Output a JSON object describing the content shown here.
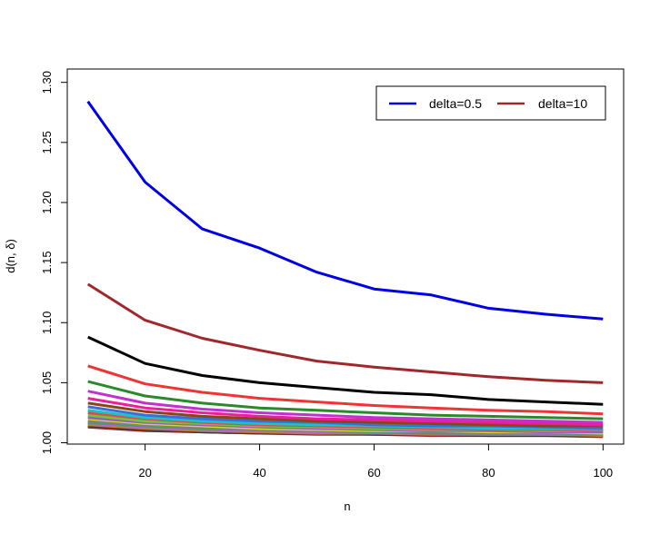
{
  "chart_data": {
    "type": "line",
    "title": "",
    "xlabel": "n",
    "ylabel": "d(n, δ)",
    "x": [
      10,
      20,
      30,
      40,
      50,
      60,
      70,
      80,
      90,
      100
    ],
    "xlim": [
      6.4,
      103.6
    ],
    "ylim": [
      0.9989,
      1.3111
    ],
    "xticks": [
      20,
      40,
      60,
      80,
      100
    ],
    "yticks": [
      1.0,
      1.05,
      1.1,
      1.15,
      1.2,
      1.25,
      1.3
    ],
    "ytick_labels": [
      "1.00",
      "1.05",
      "1.10",
      "1.15",
      "1.20",
      "1.25",
      "1.30"
    ],
    "grid": false,
    "legend_position": "top-right",
    "legend": [
      {
        "label": "delta=0.5",
        "color": "#0000e6"
      },
      {
        "label": "delta=10",
        "color": "#a0282d"
      }
    ],
    "series": [
      {
        "color": "#0000e6",
        "values": [
          1.284,
          1.217,
          1.178,
          1.162,
          1.142,
          1.128,
          1.123,
          1.112,
          1.107,
          1.103
        ]
      },
      {
        "color": "#a0282d",
        "values": [
          1.132,
          1.102,
          1.087,
          1.077,
          1.068,
          1.063,
          1.059,
          1.055,
          1.052,
          1.05
        ]
      },
      {
        "color": "#000000",
        "values": [
          1.088,
          1.066,
          1.056,
          1.05,
          1.046,
          1.042,
          1.04,
          1.036,
          1.034,
          1.032
        ]
      },
      {
        "color": "#ef3434",
        "values": [
          1.064,
          1.049,
          1.042,
          1.037,
          1.034,
          1.031,
          1.029,
          1.027,
          1.026,
          1.024
        ]
      },
      {
        "color": "#2a8a2a",
        "values": [
          1.051,
          1.039,
          1.033,
          1.029,
          1.027,
          1.025,
          1.023,
          1.022,
          1.021,
          1.02
        ]
      },
      {
        "color": "#c42fd0",
        "values": [
          1.043,
          1.033,
          1.028,
          1.025,
          1.023,
          1.021,
          1.02,
          1.019,
          1.018,
          1.017
        ]
      },
      {
        "color": "#e8209a",
        "values": [
          1.037,
          1.029,
          1.025,
          1.022,
          1.02,
          1.019,
          1.018,
          1.017,
          1.016,
          1.015
        ]
      },
      {
        "color": "#8b4513",
        "values": [
          1.033,
          1.026,
          1.022,
          1.02,
          1.018,
          1.017,
          1.016,
          1.015,
          1.014,
          1.014
        ]
      },
      {
        "color": "#3a6fd8",
        "values": [
          1.03,
          1.023,
          1.02,
          1.018,
          1.017,
          1.015,
          1.014,
          1.014,
          1.013,
          1.012
        ]
      },
      {
        "color": "#20c0c8",
        "values": [
          1.027,
          1.021,
          1.018,
          1.016,
          1.015,
          1.014,
          1.013,
          1.012,
          1.012,
          1.011
        ]
      },
      {
        "color": "#e04a4a",
        "values": [
          1.025,
          1.02,
          1.017,
          1.015,
          1.014,
          1.013,
          1.012,
          1.011,
          1.011,
          1.01
        ]
      },
      {
        "color": "#6ac83a",
        "values": [
          1.023,
          1.018,
          1.016,
          1.014,
          1.013,
          1.012,
          1.011,
          1.011,
          1.01,
          1.01
        ]
      },
      {
        "color": "#9a58c8",
        "values": [
          1.021,
          1.017,
          1.015,
          1.013,
          1.012,
          1.011,
          1.01,
          1.01,
          1.009,
          1.009
        ]
      },
      {
        "color": "#d8d830",
        "values": [
          1.02,
          1.016,
          1.014,
          1.012,
          1.011,
          1.01,
          1.01,
          1.009,
          1.009,
          1.008
        ]
      },
      {
        "color": "#808080",
        "values": [
          1.018,
          1.015,
          1.013,
          1.011,
          1.01,
          1.01,
          1.009,
          1.009,
          1.008,
          1.008
        ]
      },
      {
        "color": "#4a9a6a",
        "values": [
          1.017,
          1.014,
          1.012,
          1.011,
          1.01,
          1.009,
          1.008,
          1.008,
          1.008,
          1.007
        ]
      },
      {
        "color": "#b06ad0",
        "values": [
          1.016,
          1.013,
          1.011,
          1.01,
          1.009,
          1.008,
          1.008,
          1.007,
          1.007,
          1.007
        ]
      },
      {
        "color": "#c87830",
        "values": [
          1.015,
          1.012,
          1.01,
          1.009,
          1.008,
          1.008,
          1.007,
          1.007,
          1.007,
          1.006
        ]
      },
      {
        "color": "#3a3a3a",
        "values": [
          1.014,
          1.011,
          1.009,
          1.008,
          1.008,
          1.007,
          1.007,
          1.006,
          1.006,
          1.006
        ]
      },
      {
        "color": "#a0282d",
        "values": [
          1.013,
          1.01,
          1.009,
          1.008,
          1.007,
          1.007,
          1.006,
          1.006,
          1.006,
          1.005
        ]
      }
    ]
  }
}
